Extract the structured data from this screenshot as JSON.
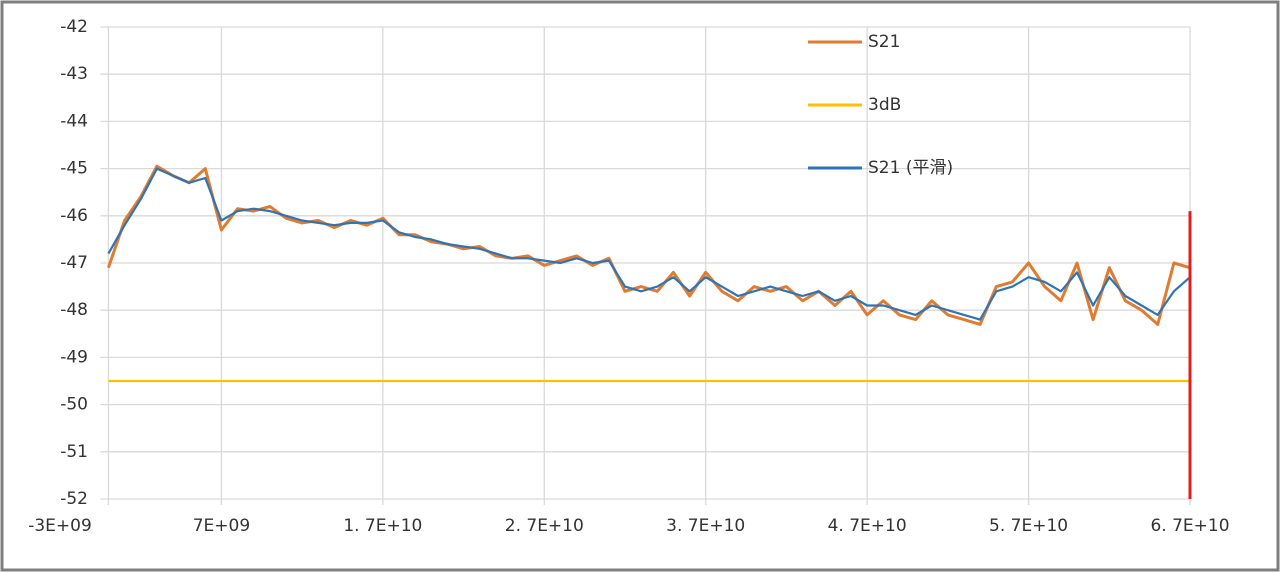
{
  "chart_data": {
    "type": "line",
    "x": [
      0,
      1000000000.0,
      2000000000.0,
      3000000000.0,
      4000000000.0,
      5000000000.0,
      6000000000.0,
      7000000000.0,
      8000000000.0,
      9000000000.0,
      10000000000.0,
      11000000000.0,
      12000000000.0,
      13000000000.0,
      14000000000.0,
      15000000000.0,
      16000000000.0,
      17000000000.0,
      18000000000.0,
      19000000000.0,
      20000000000.0,
      21000000000.0,
      22000000000.0,
      23000000000.0,
      24000000000.0,
      25000000000.0,
      26000000000.0,
      27000000000.0,
      28000000000.0,
      29000000000.0,
      30000000000.0,
      31000000000.0,
      32000000000.0,
      33000000000.0,
      34000000000.0,
      35000000000.0,
      36000000000.0,
      37000000000.0,
      38000000000.0,
      39000000000.0,
      40000000000.0,
      41000000000.0,
      42000000000.0,
      43000000000.0,
      44000000000.0,
      45000000000.0,
      46000000000.0,
      47000000000.0,
      48000000000.0,
      49000000000.0,
      50000000000.0,
      51000000000.0,
      52000000000.0,
      53000000000.0,
      54000000000.0,
      55000000000.0,
      56000000000.0,
      57000000000.0,
      58000000000.0,
      59000000000.0,
      60000000000.0,
      61000000000.0,
      62000000000.0,
      63000000000.0,
      64000000000.0,
      65000000000.0,
      66000000000.0,
      67000000000.0
    ],
    "series": [
      {
        "name": "S21",
        "color": "#e07b30",
        "values": [
          -47.1,
          -46.1,
          -45.6,
          -44.95,
          -45.15,
          -45.3,
          -45.0,
          -46.3,
          -45.85,
          -45.9,
          -45.8,
          -46.05,
          -46.15,
          -46.1,
          -46.25,
          -46.1,
          -46.2,
          -46.05,
          -46.4,
          -46.4,
          -46.55,
          -46.6,
          -46.7,
          -46.65,
          -46.85,
          -46.9,
          -46.85,
          -47.05,
          -46.95,
          -46.85,
          -47.05,
          -46.9,
          -47.6,
          -47.5,
          -47.6,
          -47.2,
          -47.7,
          -47.2,
          -47.6,
          -47.8,
          -47.5,
          -47.6,
          -47.5,
          -47.8,
          -47.6,
          -47.9,
          -47.6,
          -48.1,
          -47.8,
          -48.1,
          -48.2,
          -47.8,
          -48.1,
          -48.2,
          -48.3,
          -47.5,
          -47.4,
          -47.0,
          -47.5,
          -47.8,
          -47.0,
          -48.2,
          -47.1,
          -47.8,
          -48.0,
          -48.3,
          -47.0,
          -47.1
        ]
      },
      {
        "name": "3dB",
        "color": "#ffc000",
        "x": [
          0,
          67000000000
        ],
        "values": [
          -49.5,
          -49.5
        ]
      },
      {
        "name": "S21 (平滑)",
        "color": "#2e75b6",
        "values": [
          -46.8,
          -46.2,
          -45.65,
          -45.0,
          -45.15,
          -45.3,
          -45.2,
          -46.1,
          -45.9,
          -45.85,
          -45.9,
          -46.0,
          -46.1,
          -46.15,
          -46.2,
          -46.15,
          -46.15,
          -46.1,
          -46.35,
          -46.45,
          -46.5,
          -46.6,
          -46.65,
          -46.7,
          -46.8,
          -46.9,
          -46.9,
          -46.95,
          -47.0,
          -46.9,
          -47.0,
          -46.95,
          -47.5,
          -47.6,
          -47.5,
          -47.3,
          -47.6,
          -47.3,
          -47.5,
          -47.7,
          -47.6,
          -47.5,
          -47.6,
          -47.7,
          -47.6,
          -47.8,
          -47.7,
          -47.9,
          -47.9,
          -48.0,
          -48.1,
          -47.9,
          -48.0,
          -48.1,
          -48.2,
          -47.6,
          -47.5,
          -47.3,
          -47.4,
          -47.6,
          -47.2,
          -47.9,
          -47.3,
          -47.7,
          -47.9,
          -48.1,
          -47.6,
          -47.3
        ]
      }
    ],
    "red_line": {
      "x": 67000000000,
      "y": [
        -45.9,
        -52
      ],
      "color": "#e02020"
    },
    "xlim": [
      -3000000000,
      67000000000
    ],
    "xticks": [
      {
        "value": -3000000000,
        "label": "-3E+09"
      },
      {
        "value": 7000000000,
        "label": "7E+09"
      },
      {
        "value": 17000000000,
        "label": "1. 7E+10"
      },
      {
        "value": 27000000000,
        "label": "2. 7E+10"
      },
      {
        "value": 37000000000,
        "label": "3. 7E+10"
      },
      {
        "value": 47000000000,
        "label": "4. 7E+10"
      },
      {
        "value": 57000000000,
        "label": "5. 7E+10"
      },
      {
        "value": 67000000000,
        "label": "6. 7E+10"
      }
    ],
    "ylim": [
      -52,
      -42
    ],
    "yticks": [
      -42,
      -43,
      -44,
      -45,
      -46,
      -47,
      -48,
      -49,
      -50,
      -51,
      -52
    ],
    "grid": true
  }
}
